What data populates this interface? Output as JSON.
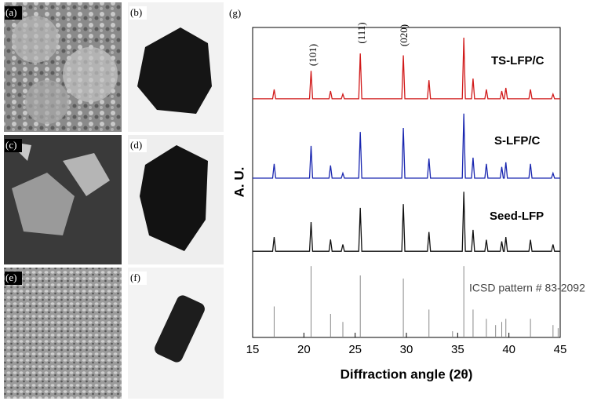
{
  "chart_data": {
    "type": "line",
    "panel_label": "(g)",
    "panels": [
      "(a)",
      "(b)",
      "(c)",
      "(d)",
      "(e)",
      "(f)"
    ],
    "ylabel": "A. U.",
    "xlabel": "Diffraction angle (2θ)",
    "xlim": [
      15,
      45
    ],
    "xticks": [
      15,
      20,
      25,
      30,
      35,
      40,
      45
    ],
    "ylim": [
      0,
      100
    ],
    "annotations": [
      "(101)",
      "(111)",
      "(020)"
    ],
    "x": [
      15,
      16.95,
      17.1,
      17.25,
      20.55,
      20.7,
      20.85,
      22.45,
      22.6,
      22.75,
      23.65,
      23.8,
      23.95,
      25.35,
      25.5,
      25.65,
      29.55,
      29.7,
      29.85,
      32.05,
      32.2,
      32.35,
      35.45,
      35.6,
      35.75,
      36.35,
      36.5,
      36.65,
      37.65,
      37.8,
      37.95,
      39.15,
      39.3,
      39.45,
      39.55,
      39.7,
      39.85,
      41.95,
      42.1,
      42.25,
      44.15,
      44.3,
      44.45,
      45
    ],
    "series": [
      {
        "name": "TS-LFP/C",
        "color": "#d11a1a",
        "values": [
          77,
          77,
          80,
          77,
          77,
          86,
          77,
          77,
          79.5,
          77,
          77,
          78.5,
          77,
          77,
          91.6,
          77,
          77,
          91,
          77,
          77,
          83,
          77,
          77,
          96.7,
          77,
          77,
          83.5,
          77,
          77,
          80,
          77,
          77,
          79.5,
          77,
          77,
          80.5,
          77,
          77,
          80,
          77,
          77,
          78.5,
          77,
          77
        ]
      },
      {
        "name": "S-LFP/C",
        "color": "#1a27b0",
        "values": [
          51.4,
          51.4,
          56,
          51.4,
          51.4,
          61.8,
          51.4,
          51.4,
          55.5,
          51.4,
          51.4,
          53,
          51.4,
          51.4,
          66.3,
          51.4,
          51.4,
          67.6,
          51.4,
          51.4,
          57.7,
          51.4,
          51.4,
          72.2,
          51.4,
          51.4,
          58,
          51.4,
          51.4,
          56,
          51.4,
          51.4,
          55,
          51.4,
          51.4,
          56.5,
          51.4,
          51.4,
          56,
          51.4,
          51.4,
          53,
          51.4,
          51.4
        ]
      },
      {
        "name": "Seed-LFP",
        "color": "#111111",
        "values": [
          27.8,
          27.8,
          32.4,
          27.8,
          27.8,
          37.2,
          27.8,
          27.8,
          31.6,
          27.8,
          27.8,
          30,
          27.8,
          27.8,
          41.8,
          27.8,
          27.8,
          43,
          27.8,
          27.8,
          34,
          27.8,
          27.8,
          47,
          27.8,
          27.8,
          34.7,
          27.8,
          27.8,
          31.5,
          27.8,
          27.8,
          31,
          27.8,
          27.8,
          32.4,
          27.8,
          27.8,
          31.5,
          27.8,
          27.8,
          30,
          27.8,
          27.8
        ]
      }
    ],
    "sticks": {
      "name": "ICSD pattern # 83-2092",
      "color": "#888888",
      "x": [
        17.1,
        20.7,
        22.6,
        23.8,
        25.5,
        29.7,
        32.2,
        34.5,
        35.6,
        36.5,
        37.8,
        38.7,
        39.3,
        39.7,
        42.1,
        44.3,
        44.8
      ],
      "values": [
        10,
        23,
        7.6,
        5,
        20,
        19,
        9,
        2,
        23,
        9,
        6,
        4,
        5,
        6,
        6,
        4,
        3
      ]
    }
  }
}
